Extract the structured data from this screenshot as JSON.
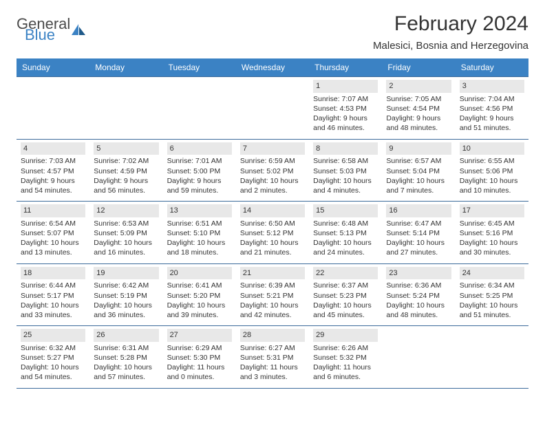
{
  "logo": {
    "word1": "General",
    "word2": "Blue"
  },
  "title": "February 2024",
  "location": "Malesici, Bosnia and Herzegovina",
  "colors": {
    "header_bg": "#3b82c4",
    "header_text": "#ffffff",
    "border": "#3b6a9a",
    "daynum_bg": "#e8e8e8",
    "text": "#333333",
    "logo_gray": "#4a4a4a",
    "logo_blue": "#3b82c4",
    "page_bg": "#ffffff"
  },
  "day_headers": [
    "Sunday",
    "Monday",
    "Tuesday",
    "Wednesday",
    "Thursday",
    "Friday",
    "Saturday"
  ],
  "weeks": [
    [
      null,
      null,
      null,
      null,
      {
        "n": "1",
        "sunrise": "Sunrise: 7:07 AM",
        "sunset": "Sunset: 4:53 PM",
        "day1": "Daylight: 9 hours",
        "day2": "and 46 minutes."
      },
      {
        "n": "2",
        "sunrise": "Sunrise: 7:05 AM",
        "sunset": "Sunset: 4:54 PM",
        "day1": "Daylight: 9 hours",
        "day2": "and 48 minutes."
      },
      {
        "n": "3",
        "sunrise": "Sunrise: 7:04 AM",
        "sunset": "Sunset: 4:56 PM",
        "day1": "Daylight: 9 hours",
        "day2": "and 51 minutes."
      }
    ],
    [
      {
        "n": "4",
        "sunrise": "Sunrise: 7:03 AM",
        "sunset": "Sunset: 4:57 PM",
        "day1": "Daylight: 9 hours",
        "day2": "and 54 minutes."
      },
      {
        "n": "5",
        "sunrise": "Sunrise: 7:02 AM",
        "sunset": "Sunset: 4:59 PM",
        "day1": "Daylight: 9 hours",
        "day2": "and 56 minutes."
      },
      {
        "n": "6",
        "sunrise": "Sunrise: 7:01 AM",
        "sunset": "Sunset: 5:00 PM",
        "day1": "Daylight: 9 hours",
        "day2": "and 59 minutes."
      },
      {
        "n": "7",
        "sunrise": "Sunrise: 6:59 AM",
        "sunset": "Sunset: 5:02 PM",
        "day1": "Daylight: 10 hours",
        "day2": "and 2 minutes."
      },
      {
        "n": "8",
        "sunrise": "Sunrise: 6:58 AM",
        "sunset": "Sunset: 5:03 PM",
        "day1": "Daylight: 10 hours",
        "day2": "and 4 minutes."
      },
      {
        "n": "9",
        "sunrise": "Sunrise: 6:57 AM",
        "sunset": "Sunset: 5:04 PM",
        "day1": "Daylight: 10 hours",
        "day2": "and 7 minutes."
      },
      {
        "n": "10",
        "sunrise": "Sunrise: 6:55 AM",
        "sunset": "Sunset: 5:06 PM",
        "day1": "Daylight: 10 hours",
        "day2": "and 10 minutes."
      }
    ],
    [
      {
        "n": "11",
        "sunrise": "Sunrise: 6:54 AM",
        "sunset": "Sunset: 5:07 PM",
        "day1": "Daylight: 10 hours",
        "day2": "and 13 minutes."
      },
      {
        "n": "12",
        "sunrise": "Sunrise: 6:53 AM",
        "sunset": "Sunset: 5:09 PM",
        "day1": "Daylight: 10 hours",
        "day2": "and 16 minutes."
      },
      {
        "n": "13",
        "sunrise": "Sunrise: 6:51 AM",
        "sunset": "Sunset: 5:10 PM",
        "day1": "Daylight: 10 hours",
        "day2": "and 18 minutes."
      },
      {
        "n": "14",
        "sunrise": "Sunrise: 6:50 AM",
        "sunset": "Sunset: 5:12 PM",
        "day1": "Daylight: 10 hours",
        "day2": "and 21 minutes."
      },
      {
        "n": "15",
        "sunrise": "Sunrise: 6:48 AM",
        "sunset": "Sunset: 5:13 PM",
        "day1": "Daylight: 10 hours",
        "day2": "and 24 minutes."
      },
      {
        "n": "16",
        "sunrise": "Sunrise: 6:47 AM",
        "sunset": "Sunset: 5:14 PM",
        "day1": "Daylight: 10 hours",
        "day2": "and 27 minutes."
      },
      {
        "n": "17",
        "sunrise": "Sunrise: 6:45 AM",
        "sunset": "Sunset: 5:16 PM",
        "day1": "Daylight: 10 hours",
        "day2": "and 30 minutes."
      }
    ],
    [
      {
        "n": "18",
        "sunrise": "Sunrise: 6:44 AM",
        "sunset": "Sunset: 5:17 PM",
        "day1": "Daylight: 10 hours",
        "day2": "and 33 minutes."
      },
      {
        "n": "19",
        "sunrise": "Sunrise: 6:42 AM",
        "sunset": "Sunset: 5:19 PM",
        "day1": "Daylight: 10 hours",
        "day2": "and 36 minutes."
      },
      {
        "n": "20",
        "sunrise": "Sunrise: 6:41 AM",
        "sunset": "Sunset: 5:20 PM",
        "day1": "Daylight: 10 hours",
        "day2": "and 39 minutes."
      },
      {
        "n": "21",
        "sunrise": "Sunrise: 6:39 AM",
        "sunset": "Sunset: 5:21 PM",
        "day1": "Daylight: 10 hours",
        "day2": "and 42 minutes."
      },
      {
        "n": "22",
        "sunrise": "Sunrise: 6:37 AM",
        "sunset": "Sunset: 5:23 PM",
        "day1": "Daylight: 10 hours",
        "day2": "and 45 minutes."
      },
      {
        "n": "23",
        "sunrise": "Sunrise: 6:36 AM",
        "sunset": "Sunset: 5:24 PM",
        "day1": "Daylight: 10 hours",
        "day2": "and 48 minutes."
      },
      {
        "n": "24",
        "sunrise": "Sunrise: 6:34 AM",
        "sunset": "Sunset: 5:25 PM",
        "day1": "Daylight: 10 hours",
        "day2": "and 51 minutes."
      }
    ],
    [
      {
        "n": "25",
        "sunrise": "Sunrise: 6:32 AM",
        "sunset": "Sunset: 5:27 PM",
        "day1": "Daylight: 10 hours",
        "day2": "and 54 minutes."
      },
      {
        "n": "26",
        "sunrise": "Sunrise: 6:31 AM",
        "sunset": "Sunset: 5:28 PM",
        "day1": "Daylight: 10 hours",
        "day2": "and 57 minutes."
      },
      {
        "n": "27",
        "sunrise": "Sunrise: 6:29 AM",
        "sunset": "Sunset: 5:30 PM",
        "day1": "Daylight: 11 hours",
        "day2": "and 0 minutes."
      },
      {
        "n": "28",
        "sunrise": "Sunrise: 6:27 AM",
        "sunset": "Sunset: 5:31 PM",
        "day1": "Daylight: 11 hours",
        "day2": "and 3 minutes."
      },
      {
        "n": "29",
        "sunrise": "Sunrise: 6:26 AM",
        "sunset": "Sunset: 5:32 PM",
        "day1": "Daylight: 11 hours",
        "day2": "and 6 minutes."
      },
      null,
      null
    ]
  ]
}
